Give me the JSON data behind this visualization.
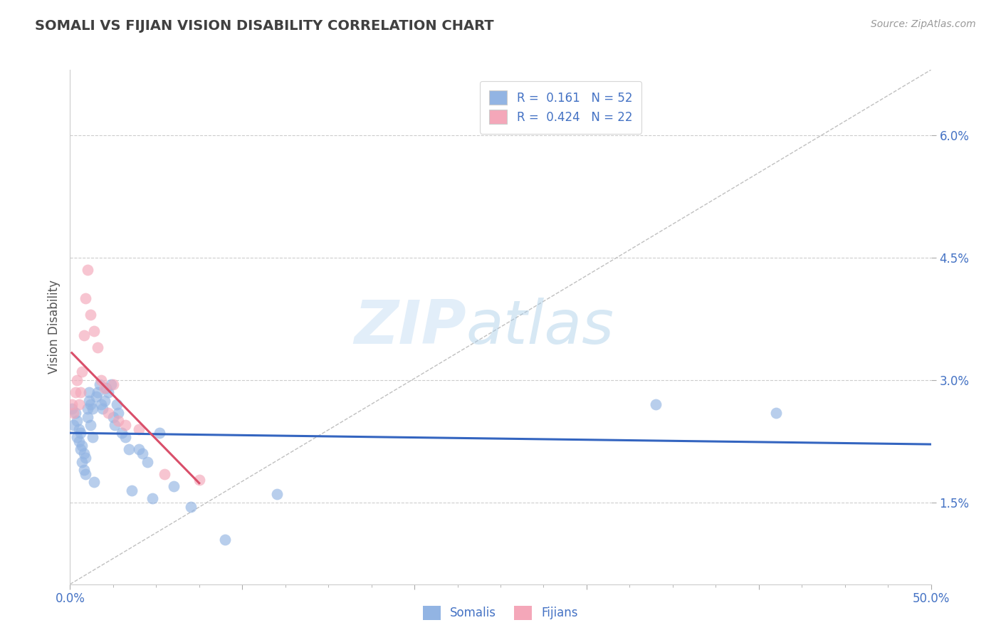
{
  "title": "SOMALI VS FIJIAN VISION DISABILITY CORRELATION CHART",
  "source": "Source: ZipAtlas.com",
  "ylabel": "Vision Disability",
  "watermark_zip": "ZIP",
  "watermark_atlas": "atlas",
  "xlim": [
    0.0,
    0.5
  ],
  "ylim": [
    0.005,
    0.068
  ],
  "xticks": [
    0.0,
    0.1,
    0.2,
    0.3,
    0.4,
    0.5
  ],
  "yticks": [
    0.015,
    0.03,
    0.045,
    0.06
  ],
  "yticklabels": [
    "1.5%",
    "3.0%",
    "4.5%",
    "6.0%"
  ],
  "somali_R": "0.161",
  "somali_N": "52",
  "fijian_R": "0.424",
  "fijian_N": "22",
  "somali_color": "#92b4e3",
  "fijian_color": "#f4a7b9",
  "somali_line_color": "#3465c0",
  "fijian_line_color": "#d94f6a",
  "diagonal_color": "#c0c0c0",
  "grid_color": "#c8c8c8",
  "title_color": "#404040",
  "axis_label_color": "#4472c4",
  "somali_scatter_x": [
    0.001,
    0.002,
    0.003,
    0.004,
    0.004,
    0.005,
    0.005,
    0.006,
    0.006,
    0.007,
    0.007,
    0.008,
    0.008,
    0.009,
    0.009,
    0.01,
    0.01,
    0.011,
    0.011,
    0.012,
    0.012,
    0.013,
    0.013,
    0.014,
    0.015,
    0.016,
    0.017,
    0.018,
    0.019,
    0.02,
    0.021,
    0.022,
    0.024,
    0.025,
    0.026,
    0.027,
    0.028,
    0.03,
    0.032,
    0.034,
    0.036,
    0.04,
    0.042,
    0.045,
    0.048,
    0.052,
    0.06,
    0.07,
    0.09,
    0.12,
    0.34,
    0.41
  ],
  "somali_scatter_y": [
    0.0265,
    0.0245,
    0.026,
    0.025,
    0.023,
    0.024,
    0.0225,
    0.0215,
    0.0235,
    0.022,
    0.02,
    0.021,
    0.019,
    0.0205,
    0.0185,
    0.0265,
    0.0255,
    0.0275,
    0.0285,
    0.027,
    0.0245,
    0.023,
    0.0265,
    0.0175,
    0.028,
    0.0285,
    0.0295,
    0.027,
    0.0265,
    0.0275,
    0.029,
    0.0285,
    0.0295,
    0.0255,
    0.0245,
    0.027,
    0.026,
    0.0235,
    0.023,
    0.0215,
    0.0165,
    0.0215,
    0.021,
    0.02,
    0.0155,
    0.0235,
    0.017,
    0.0145,
    0.0105,
    0.016,
    0.027,
    0.026
  ],
  "fijian_scatter_x": [
    0.001,
    0.002,
    0.003,
    0.004,
    0.005,
    0.006,
    0.007,
    0.008,
    0.009,
    0.01,
    0.012,
    0.014,
    0.016,
    0.018,
    0.02,
    0.022,
    0.025,
    0.028,
    0.032,
    0.04,
    0.055,
    0.075
  ],
  "fijian_scatter_y": [
    0.027,
    0.026,
    0.0285,
    0.03,
    0.027,
    0.0285,
    0.031,
    0.0355,
    0.04,
    0.0435,
    0.038,
    0.036,
    0.034,
    0.03,
    0.029,
    0.026,
    0.0295,
    0.025,
    0.0245,
    0.024,
    0.0185,
    0.0178
  ]
}
